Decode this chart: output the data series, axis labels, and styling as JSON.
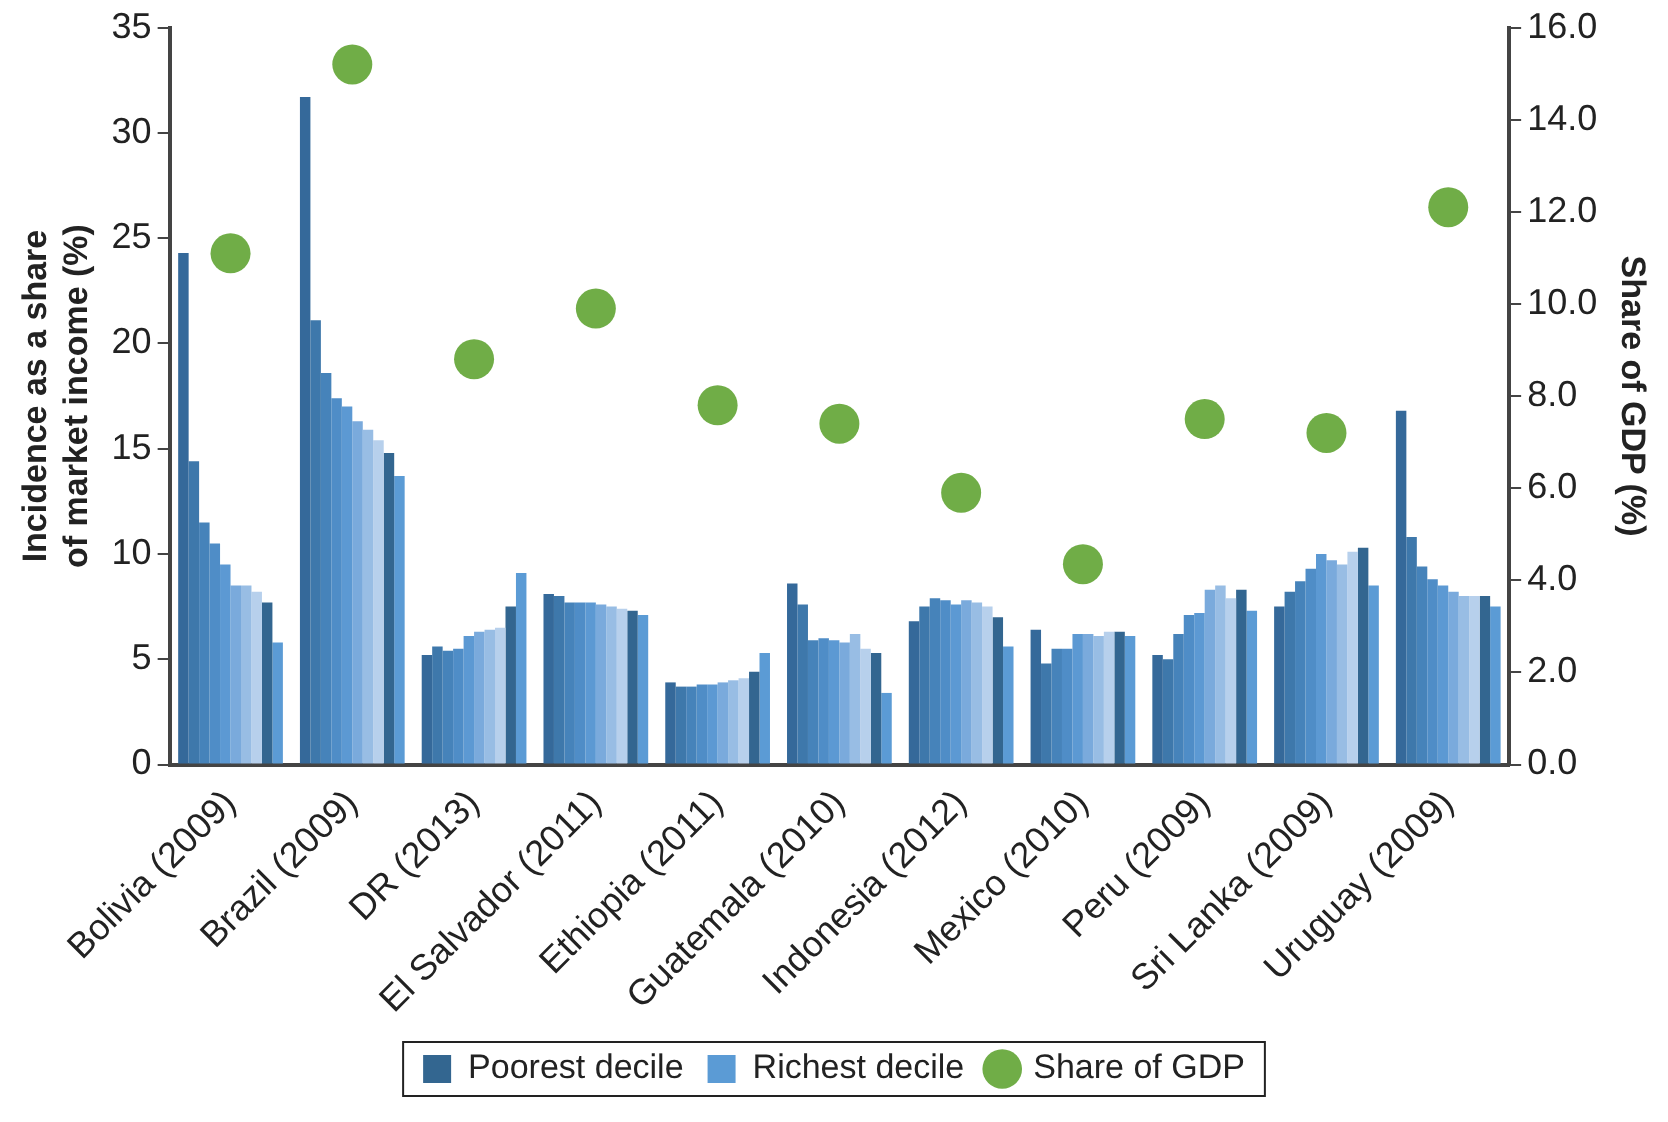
{
  "chart_data": {
    "type": "bar",
    "ylabel": "Incidence as a share of market income (%)",
    "y2label": "Share of GDP (%)",
    "categories": [
      "Bolivia (2009)",
      "Brazil (2009)",
      "DR (2013)",
      "El Salvador (2011)",
      "Ethiopia (2011)",
      "Guatemala (2010)",
      "Indonesia (2012)",
      "Mexico (2010)",
      "Peru (2009)",
      "Sri Lanka (2009)",
      "Uruguay (2009)"
    ],
    "ylim": [
      0,
      35
    ],
    "yticks": [
      0,
      5,
      10,
      15,
      20,
      25,
      30,
      35
    ],
    "y2lim": [
      0,
      16
    ],
    "y2ticks": [
      {
        "value": 0,
        "label": "0.0"
      },
      {
        "value": 2,
        "label": "2.0"
      },
      {
        "value": 4,
        "label": "4.0"
      },
      {
        "value": 6,
        "label": "6.0"
      },
      {
        "value": 8,
        "label": "8.0"
      },
      {
        "value": 10,
        "label": "10.0"
      },
      {
        "value": 12,
        "label": "12.0"
      },
      {
        "value": 14,
        "label": "14.0"
      },
      {
        "value": 16,
        "label": "16.0"
      }
    ],
    "grid": false,
    "legend": "bottom",
    "series": [
      {
        "color": "#35699a",
        "values": [
          24.3,
          31.7,
          5.2,
          8.1,
          3.9,
          8.6,
          6.8,
          6.4,
          5.2,
          7.5,
          16.8
        ]
      },
      {
        "color": "#3e78ab",
        "values": [
          14.4,
          21.1,
          5.6,
          8.0,
          3.7,
          7.6,
          7.5,
          4.8,
          5.0,
          8.2,
          10.8
        ]
      },
      {
        "color": "#4683ba",
        "values": [
          11.5,
          18.6,
          5.4,
          7.7,
          3.7,
          5.9,
          7.9,
          5.5,
          6.2,
          8.7,
          9.4
        ]
      },
      {
        "color": "#4f8dc7",
        "values": [
          10.5,
          17.4,
          5.5,
          7.7,
          3.8,
          6.0,
          7.8,
          5.5,
          7.1,
          9.3,
          8.8
        ]
      },
      {
        "color": "#5c99d3",
        "values": [
          9.5,
          17.0,
          6.1,
          7.7,
          3.8,
          5.9,
          7.6,
          6.2,
          7.2,
          10.0,
          8.5
        ]
      },
      {
        "color": "#7aaadc",
        "values": [
          8.5,
          16.3,
          6.3,
          7.6,
          3.9,
          5.8,
          7.8,
          6.2,
          8.3,
          9.7,
          8.2
        ]
      },
      {
        "color": "#98bde4",
        "values": [
          8.5,
          15.9,
          6.4,
          7.5,
          4.0,
          6.2,
          7.7,
          6.1,
          8.5,
          9.5,
          8.0
        ]
      },
      {
        "color": "#b7d0ec",
        "values": [
          8.2,
          15.4,
          6.5,
          7.4,
          4.1,
          5.5,
          7.5,
          6.3,
          7.9,
          10.1,
          8.0
        ]
      },
      {
        "name": "Poorest decile",
        "color": "#336690",
        "values": [
          7.7,
          14.8,
          7.5,
          7.3,
          4.4,
          5.3,
          7.0,
          6.3,
          8.3,
          10.3,
          8.0
        ]
      },
      {
        "name": "Richest decile",
        "color": "#5b9bd5",
        "values": [
          5.8,
          13.7,
          9.1,
          7.1,
          5.3,
          3.4,
          5.6,
          6.1,
          7.3,
          8.5,
          7.5
        ]
      },
      {
        "name": "Share of GDP",
        "type": "scatter",
        "axis": "y2",
        "marker": "circle",
        "color": "#70ad47",
        "x": [
          "Bolivia (2009)",
          "Brazil (2009)",
          "DR (2013)",
          "El Salvador (2011)",
          "Ethiopia (2011)",
          "Guatemala (2010)",
          "Indonesia (2012)",
          "Mexico (2010)",
          "Peru (2009)",
          "Sri Lanka (2009)",
          "Uruguay (2009)"
        ],
        "values": [
          11.1,
          15.2,
          8.8,
          9.9,
          7.8,
          7.4,
          5.9,
          4.35,
          7.5,
          7.2,
          12.1
        ]
      }
    ]
  }
}
